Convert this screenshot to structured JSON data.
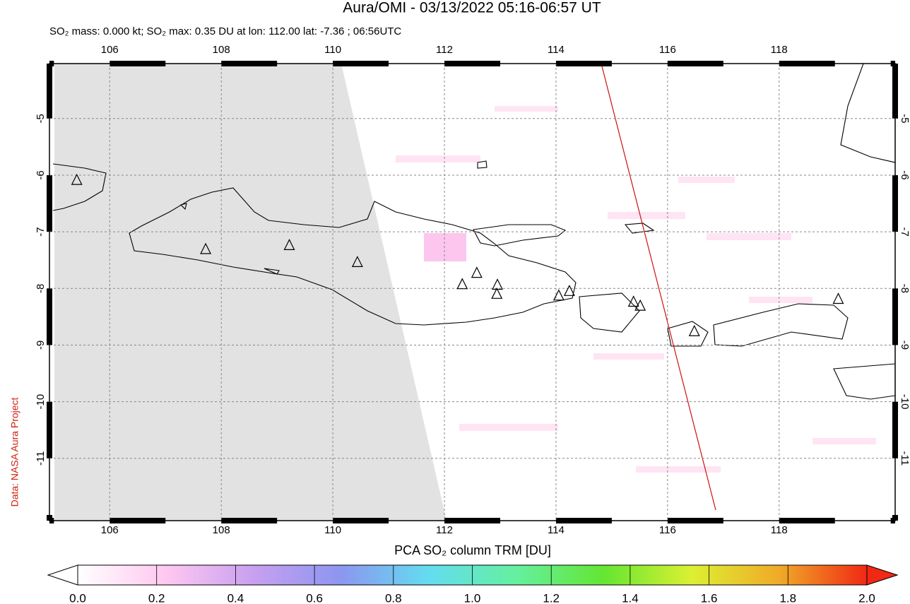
{
  "chart_data": {
    "type": "map",
    "title": "Aura/OMI - 03/13/2022 05:16-06:57 UT",
    "subtitle": "SO₂ mass: 0.000 kt; SO₂ max: 0.35 DU at lon: 112.00 lat: -7.36 ; 06:56UTC",
    "side_note": "Data: NASA Aura Project",
    "xlim": [
      104.92,
      120.08
    ],
    "ylim": [
      -12.1,
      -4.03
    ],
    "xticks": [
      106,
      108,
      110,
      112,
      114,
      116,
      118
    ],
    "yticks": [
      -5,
      -6,
      -7,
      -8,
      -9,
      -10,
      -11
    ],
    "grid": true,
    "volcanoes": {
      "color": "#000000",
      "x": [
        105.41,
        107.72,
        109.22,
        110.44,
        112.32,
        112.58,
        112.95,
        112.94,
        114.05,
        114.24,
        115.39,
        115.51,
        116.48,
        119.06
      ],
      "y": [
        -6.09,
        -7.31,
        -7.24,
        -7.54,
        -7.93,
        -7.73,
        -7.94,
        -8.1,
        -8.13,
        -8.05,
        -8.24,
        -8.31,
        -8.76,
        -8.19
      ]
    },
    "colorbar": {
      "label": "PCA SO₂ column TRM [DU]",
      "lim": [
        0,
        2
      ],
      "colors": [
        "#ffffff",
        "#ffc8f0",
        "#c8a0f0",
        "#8c96f0",
        "#64dcf0",
        "#64f0a0",
        "#64e632",
        "#dcf032",
        "#f0aa28",
        "#f02814"
      ],
      "ticks": [
        {
          "value": 0,
          "label": "0.0"
        },
        0.2,
        0.4,
        0.6,
        0.8,
        {
          "value": 1,
          "label": "1.0"
        },
        1.2,
        1.4,
        1.6,
        1.8,
        {
          "value": 2,
          "label": "2.0"
        }
      ]
    }
  }
}
